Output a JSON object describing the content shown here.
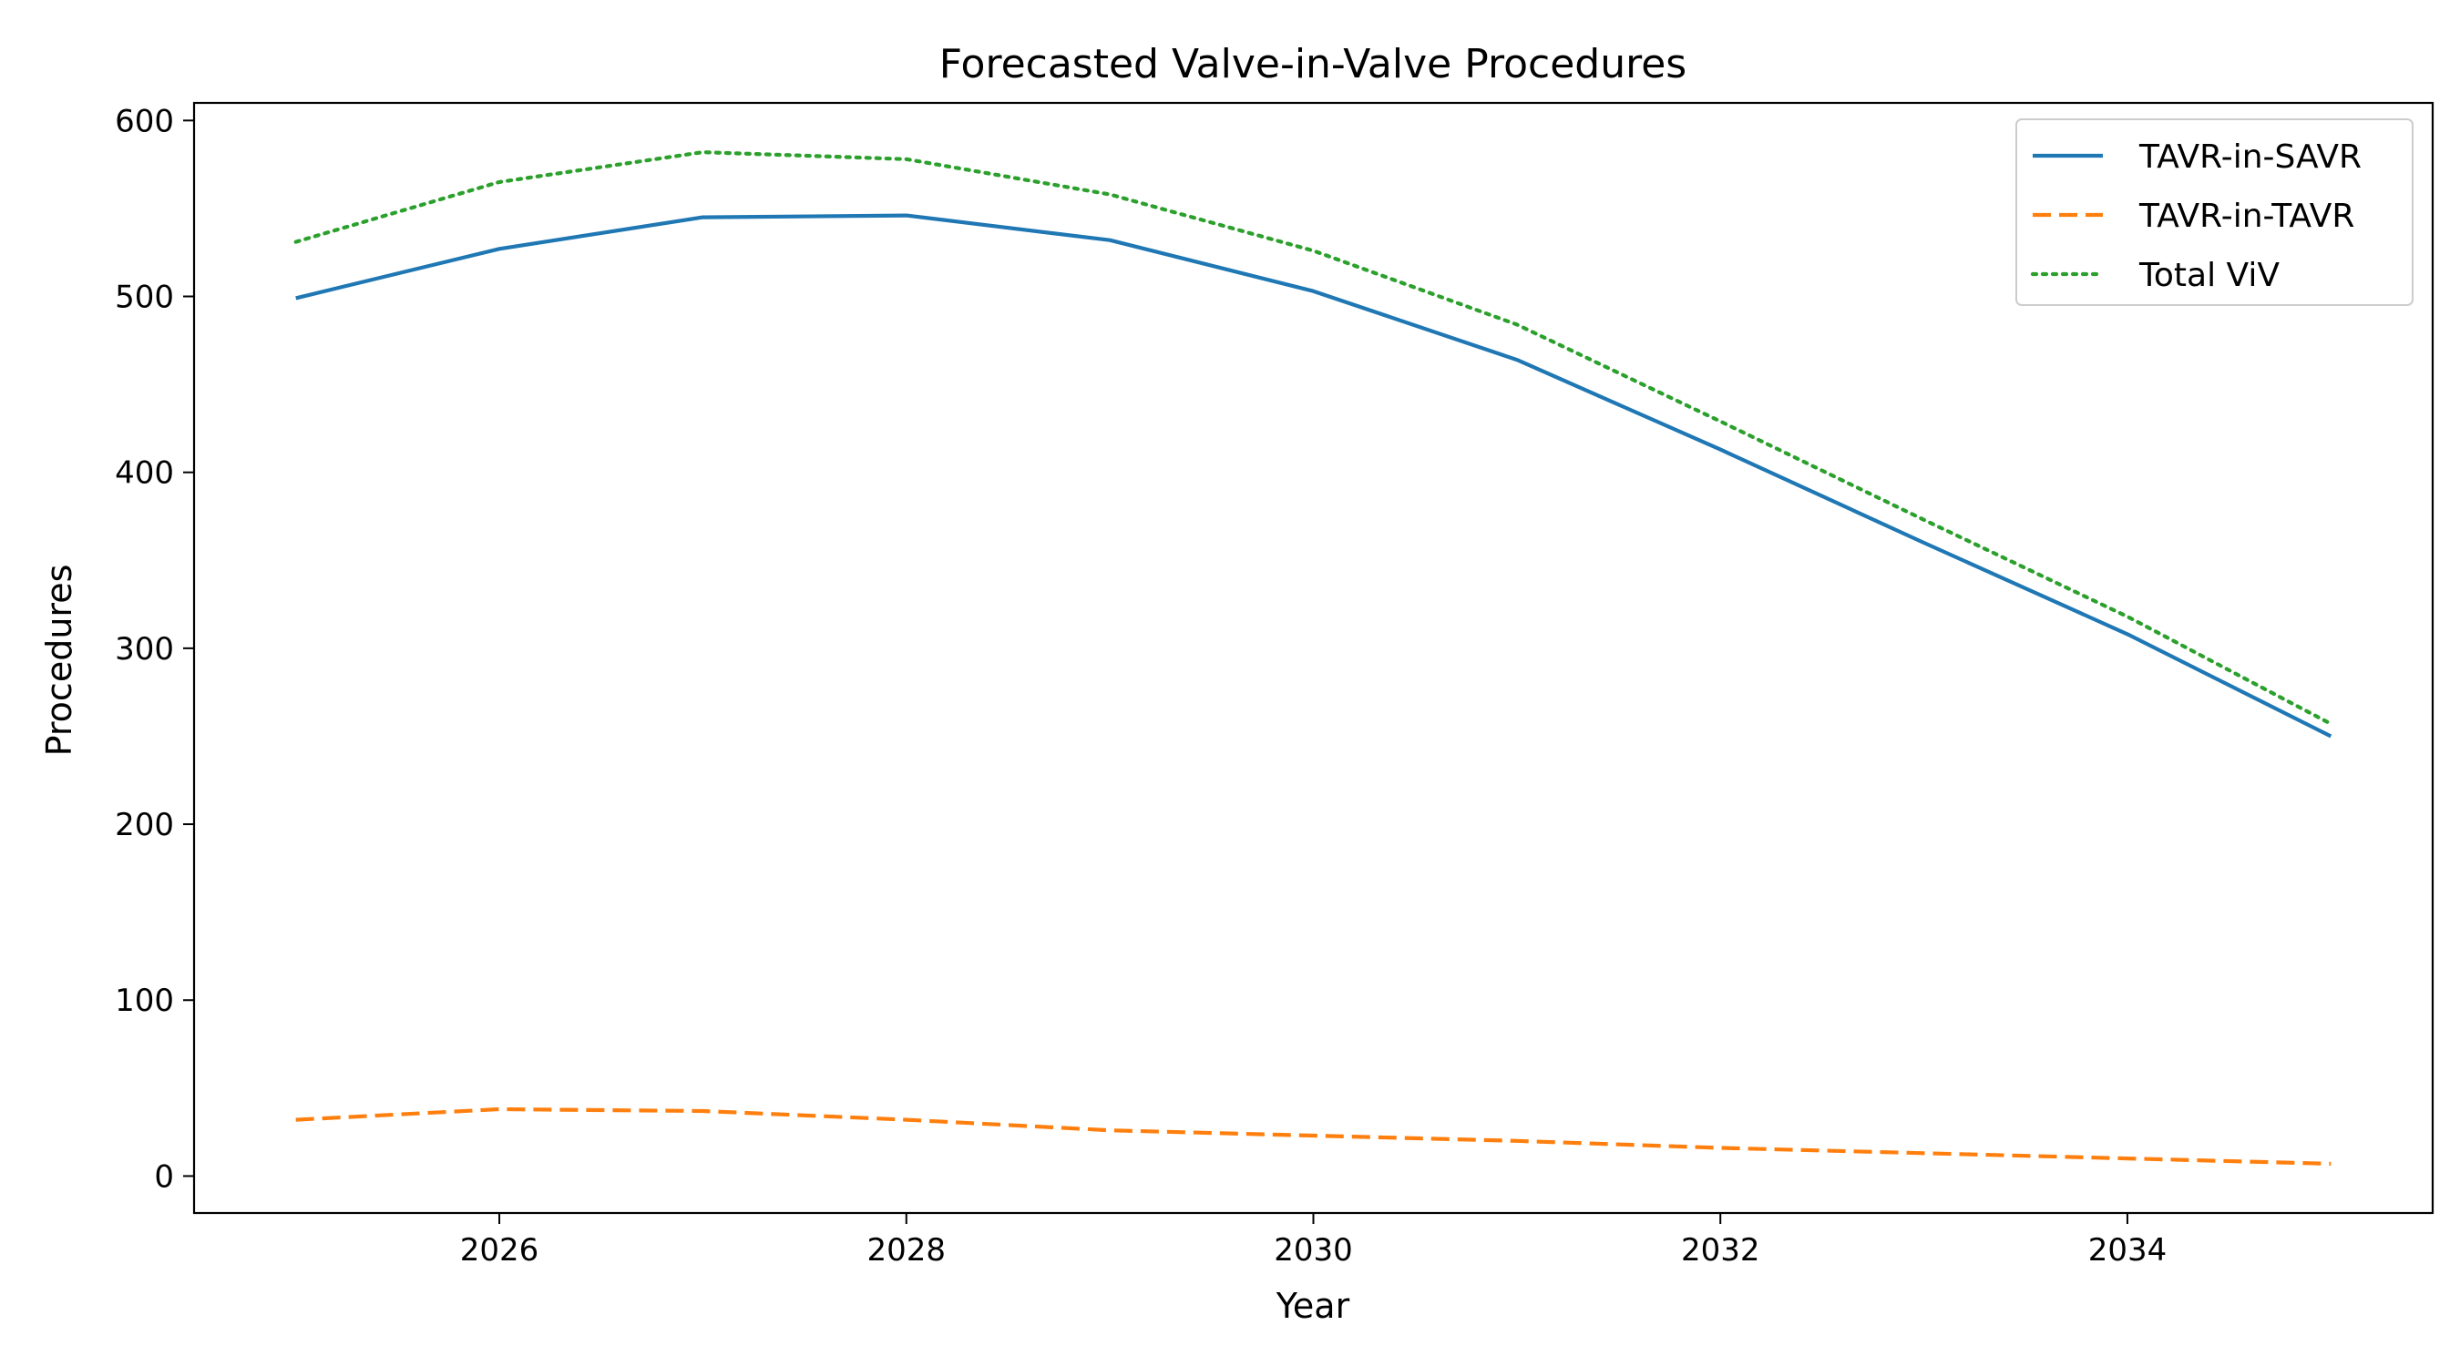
{
  "chart_data": {
    "type": "line",
    "title": "Forecasted Valve-in-Valve Procedures",
    "xlabel": "Year",
    "ylabel": "Procedures",
    "x": [
      2025,
      2026,
      2027,
      2028,
      2029,
      2030,
      2031,
      2032,
      2033,
      2034,
      2035
    ],
    "xlim": [
      2024.5,
      2035.5
    ],
    "ylim": [
      -21,
      610
    ],
    "x_ticks": [
      2026,
      2028,
      2030,
      2032,
      2034
    ],
    "y_ticks": [
      0,
      100,
      200,
      300,
      400,
      500,
      600
    ],
    "grid": false,
    "legend_position": "top-right",
    "series": [
      {
        "name": "TAVR-in-SAVR",
        "values": [
          499,
          527,
          545,
          546,
          532,
          503,
          464,
          413,
          360,
          308,
          250
        ],
        "color": "#1f77b4",
        "style": "solid"
      },
      {
        "name": "TAVR-in-TAVR",
        "values": [
          32,
          38,
          37,
          32,
          26,
          23,
          20,
          16,
          13,
          10,
          7
        ],
        "color": "#ff7f0e",
        "style": "dashed"
      },
      {
        "name": "Total ViV",
        "values": [
          531,
          565,
          582,
          578,
          558,
          526,
          484,
          429,
          373,
          318,
          257
        ],
        "color": "#2ca02c",
        "style": "dotted"
      }
    ]
  }
}
